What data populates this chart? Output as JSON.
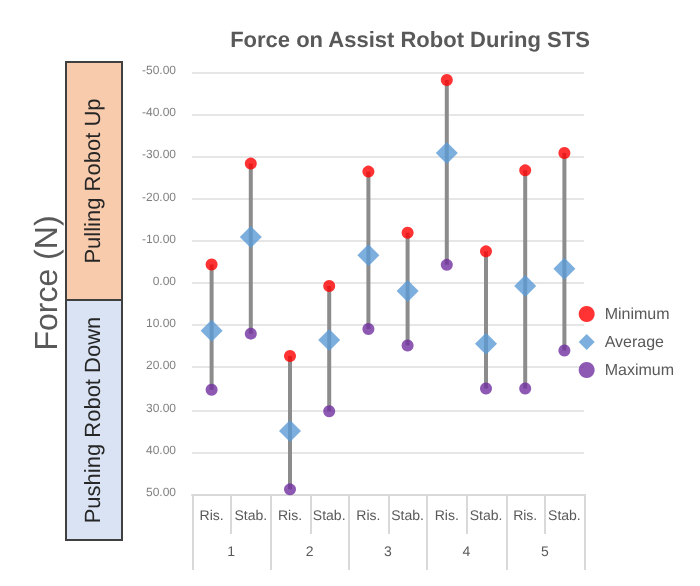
{
  "chart_data": {
    "type": "scatter",
    "title": "Force on Assist Robot During STS",
    "ylabel": "Force (N)",
    "categories": [
      "Ris.",
      "Stab.",
      "Ris.",
      "Stab.",
      "Ris.",
      "Stab.",
      "Ris.",
      "Stab.",
      "Ris.",
      "Stab."
    ],
    "annotations": [
      "1",
      "2",
      "3",
      "4",
      "5",
      "Pulling Robot Up",
      "Pushing Robot Down"
    ],
    "series": [
      {
        "name": "Minimum",
        "color": "#ff0000",
        "marker": "circle",
        "values": [
          -4.4,
          -28.3,
          17.3,
          0.7,
          -26.4,
          -11.9,
          -48.1,
          -7.5,
          -26.7,
          -30.8
        ]
      },
      {
        "name": "Average",
        "color": "#5b9bd5",
        "marker": "diamond",
        "values": [
          11.3,
          -10.9,
          35.1,
          13.5,
          -6.6,
          1.9,
          -30.8,
          14.4,
          0.7,
          -3.4
        ]
      },
      {
        "name": "Maximum",
        "color": "#7030a0",
        "marker": "circle",
        "values": [
          25.3,
          12,
          48.9,
          30.4,
          10.9,
          14.8,
          -4.3,
          25,
          25,
          16
        ]
      }
    ],
    "ylim": [
      50,
      -50
    ],
    "yticks": [
      {
        "value": -50,
        "label": "-50.00"
      },
      {
        "value": -40,
        "label": "-40.00"
      },
      {
        "value": -30,
        "label": "-30.00"
      },
      {
        "value": -20,
        "label": "-20.00"
      },
      {
        "value": -10,
        "label": "-10.00"
      },
      {
        "value": 0,
        "label": "0.00"
      },
      {
        "value": 10,
        "label": "10.00"
      },
      {
        "value": 20,
        "label": "20.00"
      },
      {
        "value": 30,
        "label": "30.00"
      },
      {
        "value": 40,
        "label": "40.00"
      },
      {
        "value": 50,
        "label": "50.00"
      }
    ],
    "grid": "y",
    "legend": "right"
  }
}
